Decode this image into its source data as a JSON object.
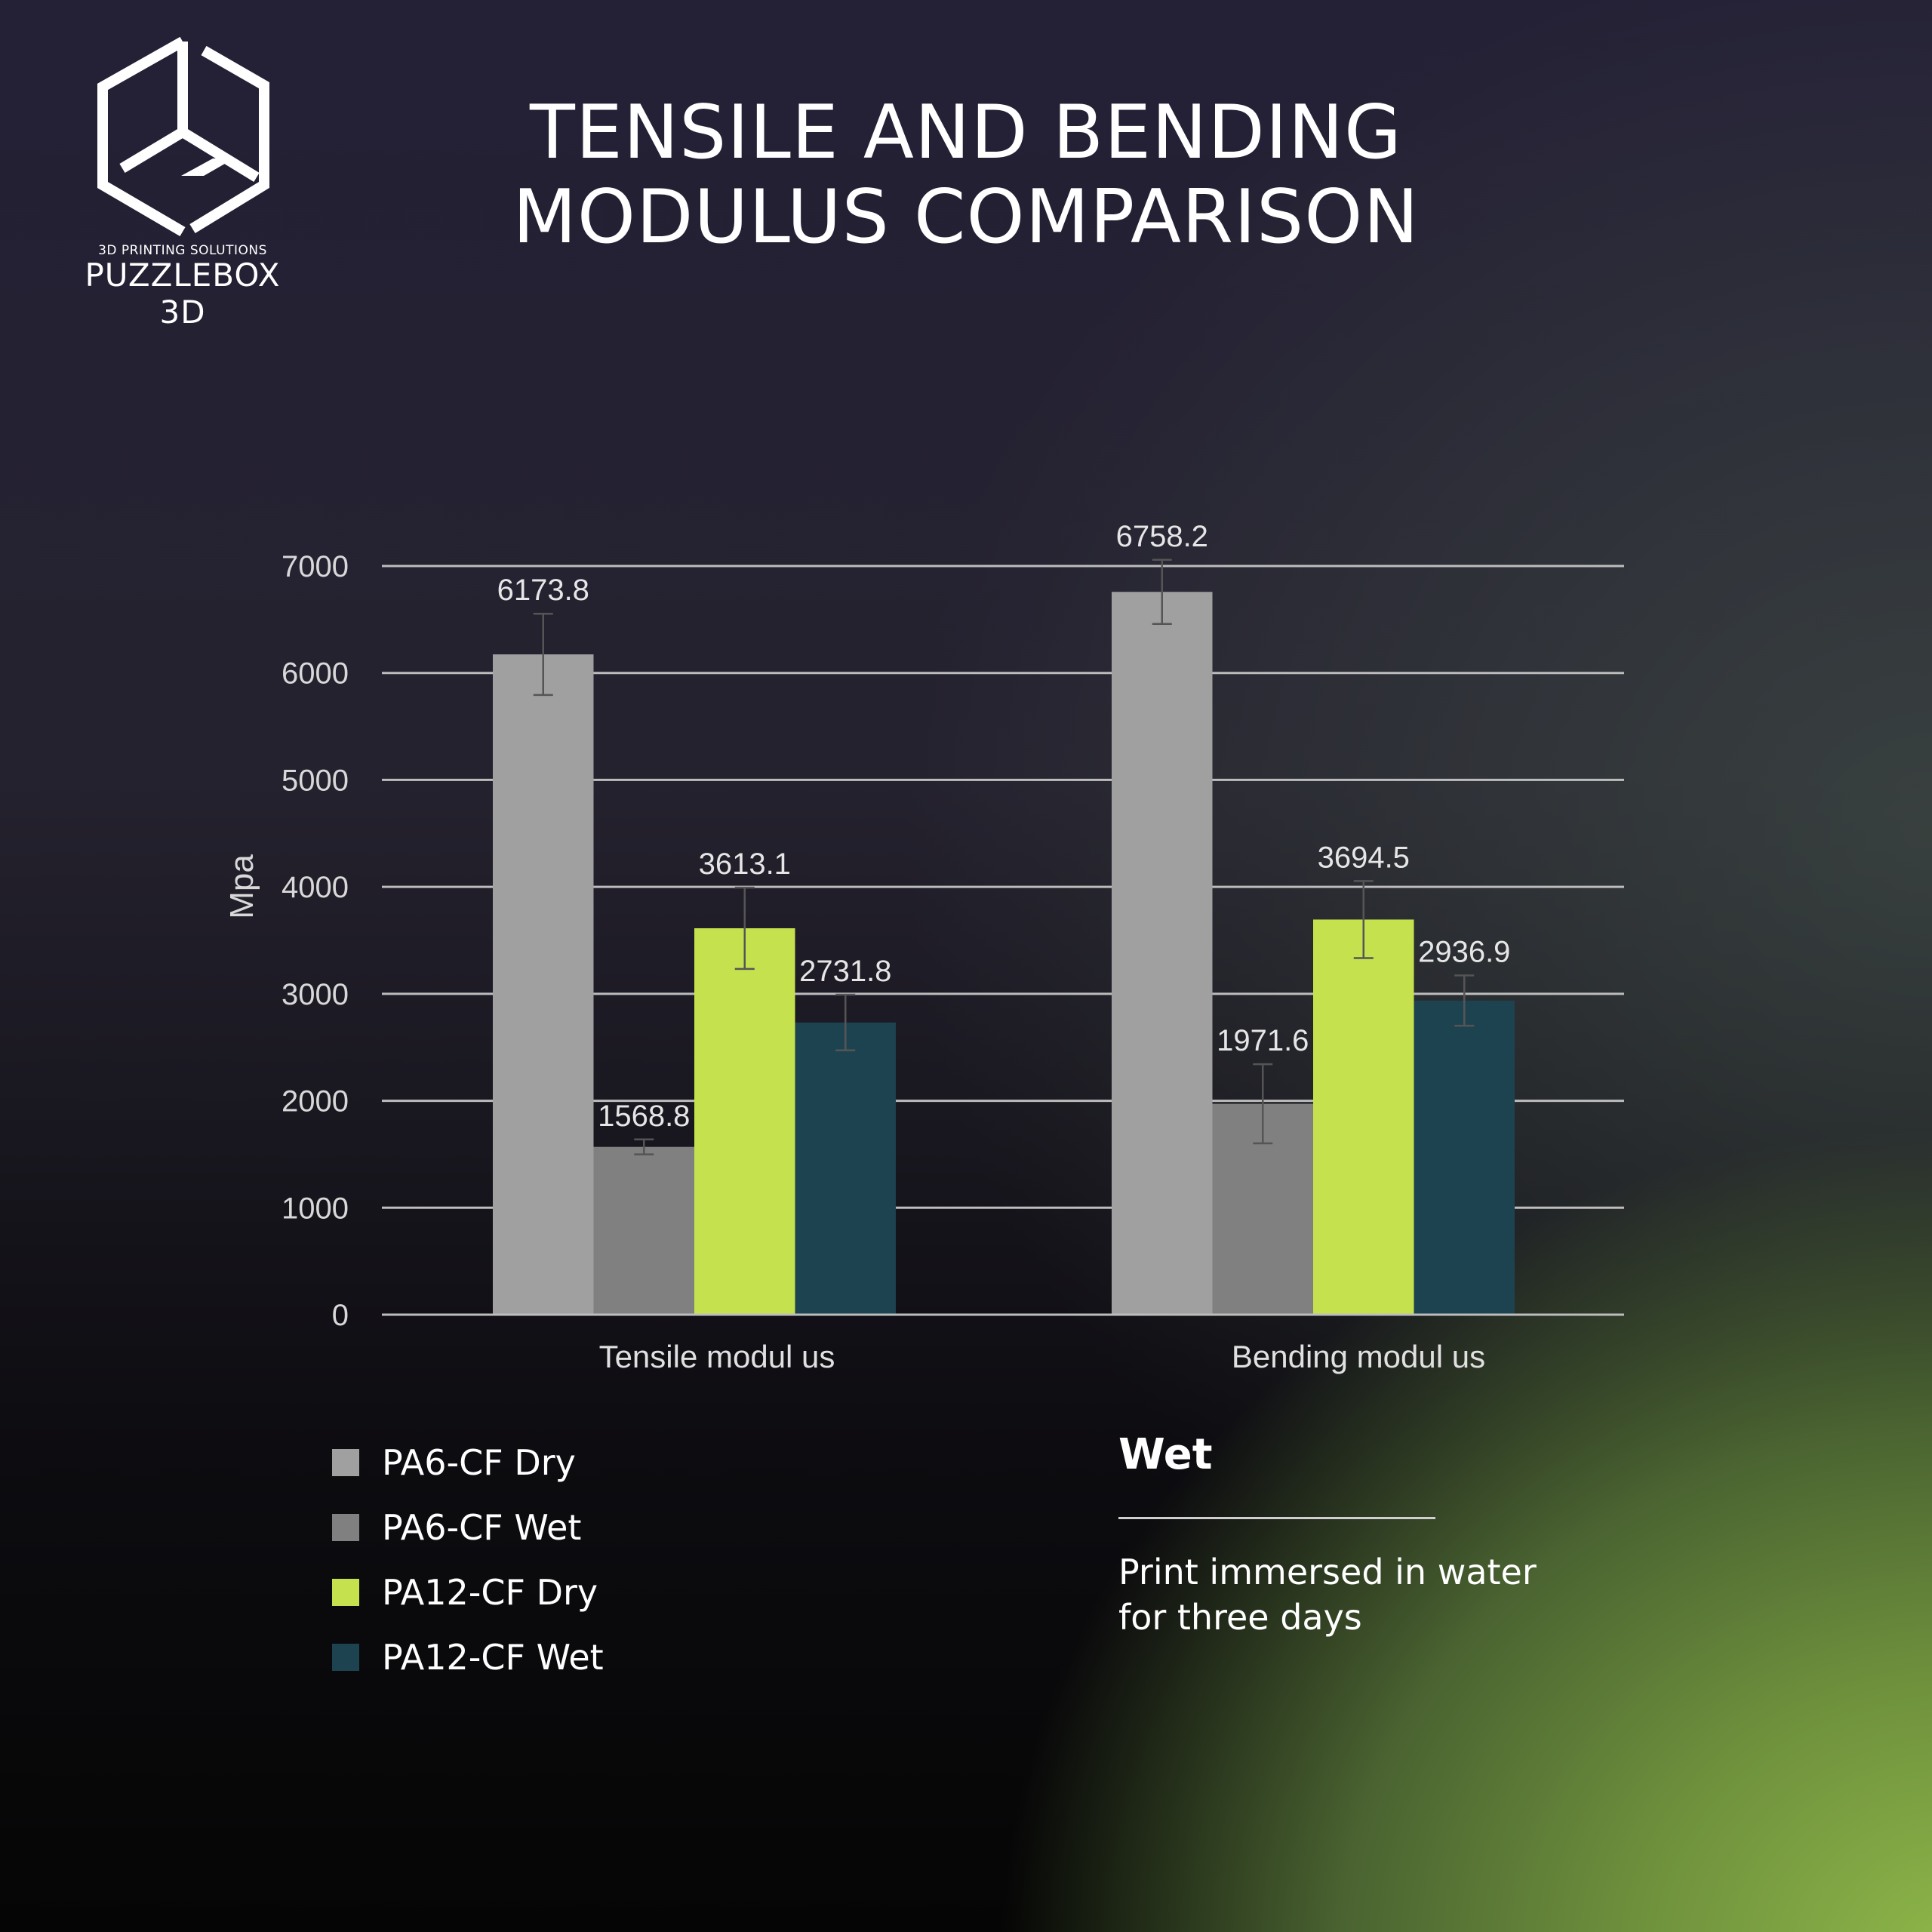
{
  "brand": {
    "name": "PUZZLEBOX 3D",
    "tagline": "3D PRINTING SOLUTIONS"
  },
  "title_lines": [
    "TENSILE AND BENDING",
    "MODULUS COMPARISON"
  ],
  "note": {
    "title": "Wet",
    "text": "Print immersed in water for three days"
  },
  "chart_data": {
    "type": "bar",
    "title": "TENSILE AND BENDING MODULUS COMPARISON",
    "ylabel": "Mpa",
    "xlabel": "",
    "ylim": [
      0,
      7000
    ],
    "yticks": [
      "0",
      "1000",
      "2000",
      "3000",
      "4000",
      "5000",
      "6000",
      "7000"
    ],
    "grid": true,
    "legend_placement": "bottom-left",
    "categories": [
      "Tensile modul us",
      "Bending modul us"
    ],
    "series": [
      {
        "name": "PA6-CF Dry",
        "color": "#a0a0a0",
        "values": [
          6173.8,
          6758.2
        ],
        "labels": [
          "6173.8",
          "6758.2"
        ],
        "error": [
          380,
          300
        ]
      },
      {
        "name": "PA6-CF Wet",
        "color": "#808080",
        "values": [
          1568.8,
          1971.6
        ],
        "labels": [
          "1568.8",
          "1971.6"
        ],
        "error": [
          70,
          370
        ]
      },
      {
        "name": "PA12-CF Dry",
        "color": "#c5e24e",
        "values": [
          3613.1,
          3694.5
        ],
        "labels": [
          "3613.1",
          "3694.5"
        ],
        "error": [
          380,
          360
        ]
      },
      {
        "name": "PA12-CF Wet",
        "color": "#1d4250",
        "values": [
          2731.8,
          2936.9
        ],
        "labels": [
          "2731.8",
          "2936.9"
        ],
        "error": [
          260,
          235
        ]
      }
    ]
  }
}
